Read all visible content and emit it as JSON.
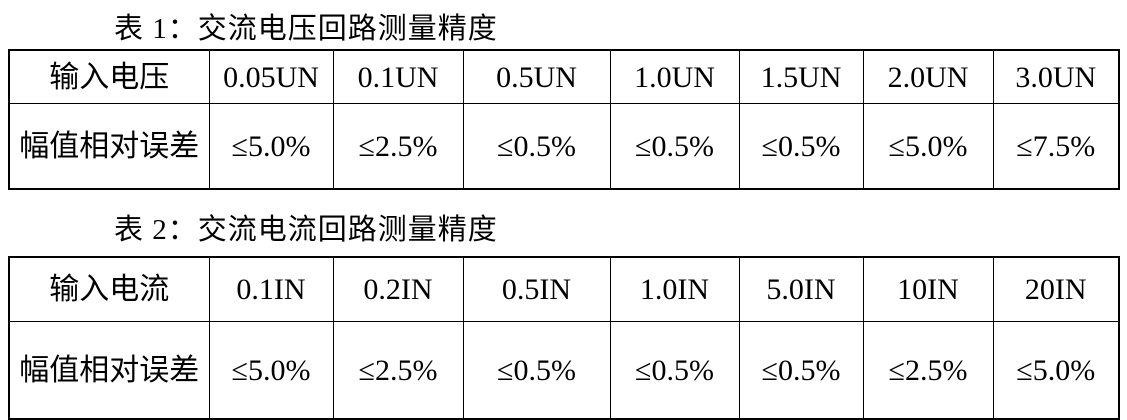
{
  "document": {
    "background": "#ffffff",
    "text_color": "#000000",
    "border_color": "#000000"
  },
  "tables": [
    {
      "title": "表 1：交流电压回路测量精度",
      "rows": [
        {
          "header": "输入电压",
          "cells": [
            "0.05UN",
            "0.1UN",
            "0.5UN",
            "1.0UN",
            "1.5UN",
            "2.0UN",
            "3.0UN"
          ]
        },
        {
          "header": "幅值相对误差",
          "cells": [
            "≤5.0%",
            "≤2.5%",
            "≤0.5%",
            "≤0.5%",
            "≤0.5%",
            "≤5.0%",
            "≤7.5%"
          ]
        }
      ]
    },
    {
      "title": "表 2：交流电流回路测量精度",
      "rows": [
        {
          "header": "输入电流",
          "cells": [
            "0.1IN",
            "0.2IN",
            "0.5IN",
            "1.0IN",
            "5.0IN",
            "10IN",
            "20IN"
          ]
        },
        {
          "header": "幅值相对误差",
          "cells": [
            "≤5.0%",
            "≤2.5%",
            "≤0.5%",
            "≤0.5%",
            "≤0.5%",
            "≤2.5%",
            "≤5.0%"
          ]
        }
      ]
    }
  ]
}
